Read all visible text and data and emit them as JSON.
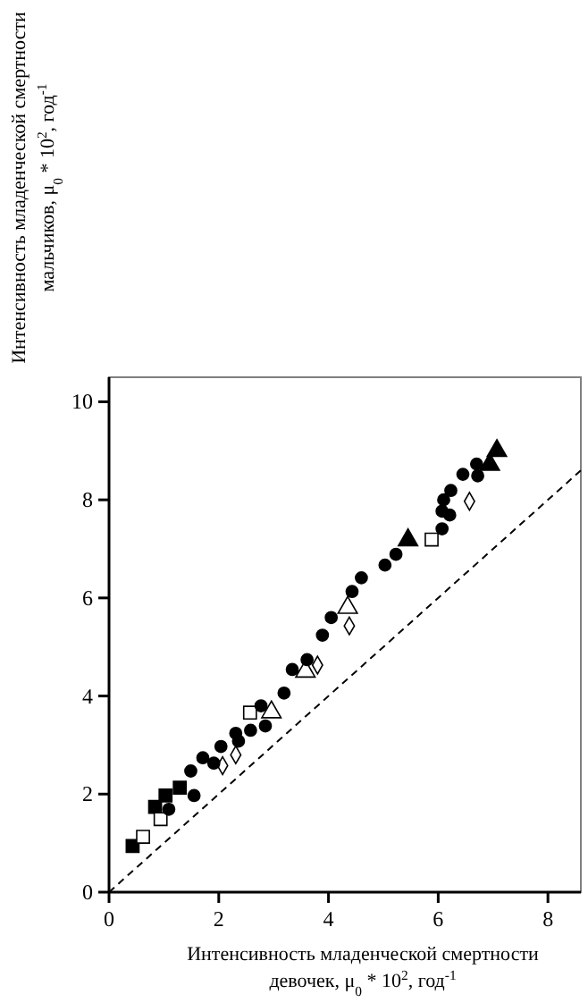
{
  "chart_data": {
    "type": "scatter",
    "xlabel": "Интенсивность младенческой смертности девочек, μ$_{0}$ * 10$^{2}$, год$^{-1}$",
    "ylabel": "Интенсивность младенческой смертности мальчиков, μ$_{0}$ * 10$^{2}$, год$^{-1}$",
    "xlim": [
      0,
      8.6
    ],
    "xticks": [
      0,
      2,
      4,
      6,
      8
    ],
    "ylim": [
      0,
      10.5
    ],
    "yticks": [
      0,
      2,
      4,
      6,
      8,
      10
    ],
    "series": [
      {
        "marker": "square",
        "color": "#000000",
        "x": [
          0.43,
          0.84,
          1.03,
          1.29
        ],
        "values": [
          0.94,
          1.74,
          1.97,
          2.13
        ]
      },
      {
        "marker": "square",
        "color": "#ffffff",
        "x": [
          0.62,
          0.94,
          2.57,
          5.88
        ],
        "values": [
          1.13,
          1.49,
          3.66,
          7.19
        ]
      },
      {
        "marker": "triangle",
        "color": "#000000",
        "x": [
          5.45,
          6.94,
          7.07
        ],
        "values": [
          7.18,
          8.72,
          9.0
        ]
      },
      {
        "marker": "triangle",
        "color": "#ffffff",
        "x": [
          2.96,
          3.58,
          4.35
        ],
        "values": [
          3.67,
          4.5,
          5.8
        ]
      },
      {
        "marker": "diamond",
        "color": "#ffffff",
        "x": [
          2.07,
          2.31,
          3.8,
          4.38,
          6.57
        ],
        "values": [
          2.58,
          2.8,
          4.63,
          5.43,
          7.97
        ]
      },
      {
        "marker": "circle",
        "color": "#000000",
        "x": [
          1.09,
          1.49,
          1.55,
          1.71,
          1.91,
          2.04,
          2.31,
          2.36,
          2.58,
          2.77,
          2.85,
          3.19,
          3.34,
          3.61,
          3.89,
          4.05,
          4.43,
          4.6,
          5.03,
          5.23,
          6.07,
          6.07,
          6.1,
          6.21,
          6.23,
          6.45,
          6.7,
          6.72
        ],
        "values": [
          1.69,
          2.47,
          1.97,
          2.74,
          2.63,
          2.97,
          3.24,
          3.08,
          3.3,
          3.8,
          3.39,
          4.06,
          4.54,
          4.74,
          5.24,
          5.6,
          6.13,
          6.41,
          6.67,
          6.89,
          7.41,
          7.77,
          8.0,
          7.69,
          8.19,
          8.52,
          8.73,
          8.49
        ]
      },
      {
        "type": "line",
        "line_style": "dashed",
        "color": "#000000",
        "x": [
          0,
          8.6
        ],
        "values": [
          0,
          8.6
        ]
      }
    ]
  }
}
